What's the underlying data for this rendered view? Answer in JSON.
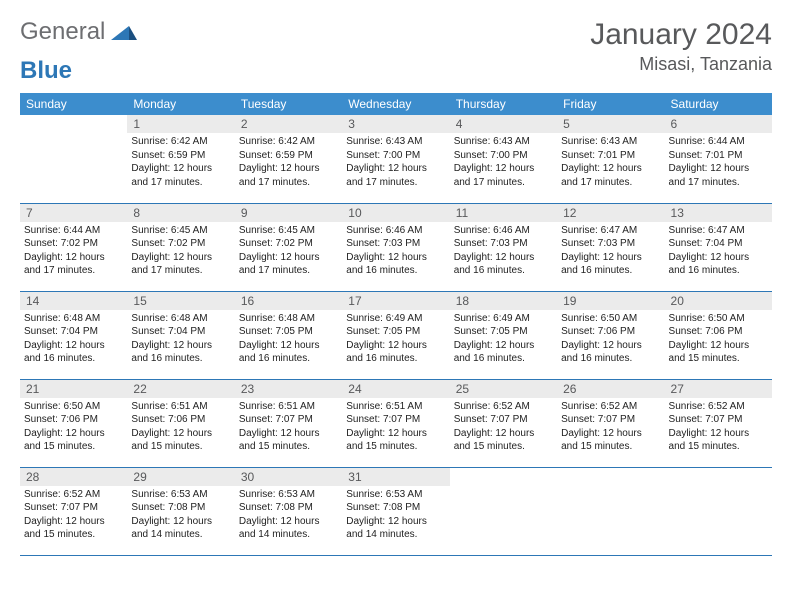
{
  "logo": {
    "text1": "General",
    "text2": "Blue"
  },
  "title": "January 2024",
  "location": "Misasi, Tanzania",
  "colors": {
    "header_bg": "#3c8dcd",
    "header_text": "#ffffff",
    "daynum_bg": "#ebebeb",
    "daynum_text": "#58595b",
    "rule": "#2d77b6",
    "title_text": "#58595b",
    "logo_gray": "#6d6e71",
    "logo_blue": "#2d77b6",
    "body_text": "#222222"
  },
  "typography": {
    "title_fontsize": 30,
    "location_fontsize": 18,
    "weekday_fontsize": 12,
    "daynum_fontsize": 12,
    "body_fontsize": 10
  },
  "weekdays": [
    "Sunday",
    "Monday",
    "Tuesday",
    "Wednesday",
    "Thursday",
    "Friday",
    "Saturday"
  ],
  "weeks": [
    [
      {
        "n": "",
        "sr": "",
        "ss": "",
        "dl": ""
      },
      {
        "n": "1",
        "sr": "Sunrise: 6:42 AM",
        "ss": "Sunset: 6:59 PM",
        "dl": "Daylight: 12 hours and 17 minutes."
      },
      {
        "n": "2",
        "sr": "Sunrise: 6:42 AM",
        "ss": "Sunset: 6:59 PM",
        "dl": "Daylight: 12 hours and 17 minutes."
      },
      {
        "n": "3",
        "sr": "Sunrise: 6:43 AM",
        "ss": "Sunset: 7:00 PM",
        "dl": "Daylight: 12 hours and 17 minutes."
      },
      {
        "n": "4",
        "sr": "Sunrise: 6:43 AM",
        "ss": "Sunset: 7:00 PM",
        "dl": "Daylight: 12 hours and 17 minutes."
      },
      {
        "n": "5",
        "sr": "Sunrise: 6:43 AM",
        "ss": "Sunset: 7:01 PM",
        "dl": "Daylight: 12 hours and 17 minutes."
      },
      {
        "n": "6",
        "sr": "Sunrise: 6:44 AM",
        "ss": "Sunset: 7:01 PM",
        "dl": "Daylight: 12 hours and 17 minutes."
      }
    ],
    [
      {
        "n": "7",
        "sr": "Sunrise: 6:44 AM",
        "ss": "Sunset: 7:02 PM",
        "dl": "Daylight: 12 hours and 17 minutes."
      },
      {
        "n": "8",
        "sr": "Sunrise: 6:45 AM",
        "ss": "Sunset: 7:02 PM",
        "dl": "Daylight: 12 hours and 17 minutes."
      },
      {
        "n": "9",
        "sr": "Sunrise: 6:45 AM",
        "ss": "Sunset: 7:02 PM",
        "dl": "Daylight: 12 hours and 17 minutes."
      },
      {
        "n": "10",
        "sr": "Sunrise: 6:46 AM",
        "ss": "Sunset: 7:03 PM",
        "dl": "Daylight: 12 hours and 16 minutes."
      },
      {
        "n": "11",
        "sr": "Sunrise: 6:46 AM",
        "ss": "Sunset: 7:03 PM",
        "dl": "Daylight: 12 hours and 16 minutes."
      },
      {
        "n": "12",
        "sr": "Sunrise: 6:47 AM",
        "ss": "Sunset: 7:03 PM",
        "dl": "Daylight: 12 hours and 16 minutes."
      },
      {
        "n": "13",
        "sr": "Sunrise: 6:47 AM",
        "ss": "Sunset: 7:04 PM",
        "dl": "Daylight: 12 hours and 16 minutes."
      }
    ],
    [
      {
        "n": "14",
        "sr": "Sunrise: 6:48 AM",
        "ss": "Sunset: 7:04 PM",
        "dl": "Daylight: 12 hours and 16 minutes."
      },
      {
        "n": "15",
        "sr": "Sunrise: 6:48 AM",
        "ss": "Sunset: 7:04 PM",
        "dl": "Daylight: 12 hours and 16 minutes."
      },
      {
        "n": "16",
        "sr": "Sunrise: 6:48 AM",
        "ss": "Sunset: 7:05 PM",
        "dl": "Daylight: 12 hours and 16 minutes."
      },
      {
        "n": "17",
        "sr": "Sunrise: 6:49 AM",
        "ss": "Sunset: 7:05 PM",
        "dl": "Daylight: 12 hours and 16 minutes."
      },
      {
        "n": "18",
        "sr": "Sunrise: 6:49 AM",
        "ss": "Sunset: 7:05 PM",
        "dl": "Daylight: 12 hours and 16 minutes."
      },
      {
        "n": "19",
        "sr": "Sunrise: 6:50 AM",
        "ss": "Sunset: 7:06 PM",
        "dl": "Daylight: 12 hours and 16 minutes."
      },
      {
        "n": "20",
        "sr": "Sunrise: 6:50 AM",
        "ss": "Sunset: 7:06 PM",
        "dl": "Daylight: 12 hours and 15 minutes."
      }
    ],
    [
      {
        "n": "21",
        "sr": "Sunrise: 6:50 AM",
        "ss": "Sunset: 7:06 PM",
        "dl": "Daylight: 12 hours and 15 minutes."
      },
      {
        "n": "22",
        "sr": "Sunrise: 6:51 AM",
        "ss": "Sunset: 7:06 PM",
        "dl": "Daylight: 12 hours and 15 minutes."
      },
      {
        "n": "23",
        "sr": "Sunrise: 6:51 AM",
        "ss": "Sunset: 7:07 PM",
        "dl": "Daylight: 12 hours and 15 minutes."
      },
      {
        "n": "24",
        "sr": "Sunrise: 6:51 AM",
        "ss": "Sunset: 7:07 PM",
        "dl": "Daylight: 12 hours and 15 minutes."
      },
      {
        "n": "25",
        "sr": "Sunrise: 6:52 AM",
        "ss": "Sunset: 7:07 PM",
        "dl": "Daylight: 12 hours and 15 minutes."
      },
      {
        "n": "26",
        "sr": "Sunrise: 6:52 AM",
        "ss": "Sunset: 7:07 PM",
        "dl": "Daylight: 12 hours and 15 minutes."
      },
      {
        "n": "27",
        "sr": "Sunrise: 6:52 AM",
        "ss": "Sunset: 7:07 PM",
        "dl": "Daylight: 12 hours and 15 minutes."
      }
    ],
    [
      {
        "n": "28",
        "sr": "Sunrise: 6:52 AM",
        "ss": "Sunset: 7:07 PM",
        "dl": "Daylight: 12 hours and 15 minutes."
      },
      {
        "n": "29",
        "sr": "Sunrise: 6:53 AM",
        "ss": "Sunset: 7:08 PM",
        "dl": "Daylight: 12 hours and 14 minutes."
      },
      {
        "n": "30",
        "sr": "Sunrise: 6:53 AM",
        "ss": "Sunset: 7:08 PM",
        "dl": "Daylight: 12 hours and 14 minutes."
      },
      {
        "n": "31",
        "sr": "Sunrise: 6:53 AM",
        "ss": "Sunset: 7:08 PM",
        "dl": "Daylight: 12 hours and 14 minutes."
      },
      {
        "n": "",
        "sr": "",
        "ss": "",
        "dl": ""
      },
      {
        "n": "",
        "sr": "",
        "ss": "",
        "dl": ""
      },
      {
        "n": "",
        "sr": "",
        "ss": "",
        "dl": ""
      }
    ]
  ]
}
